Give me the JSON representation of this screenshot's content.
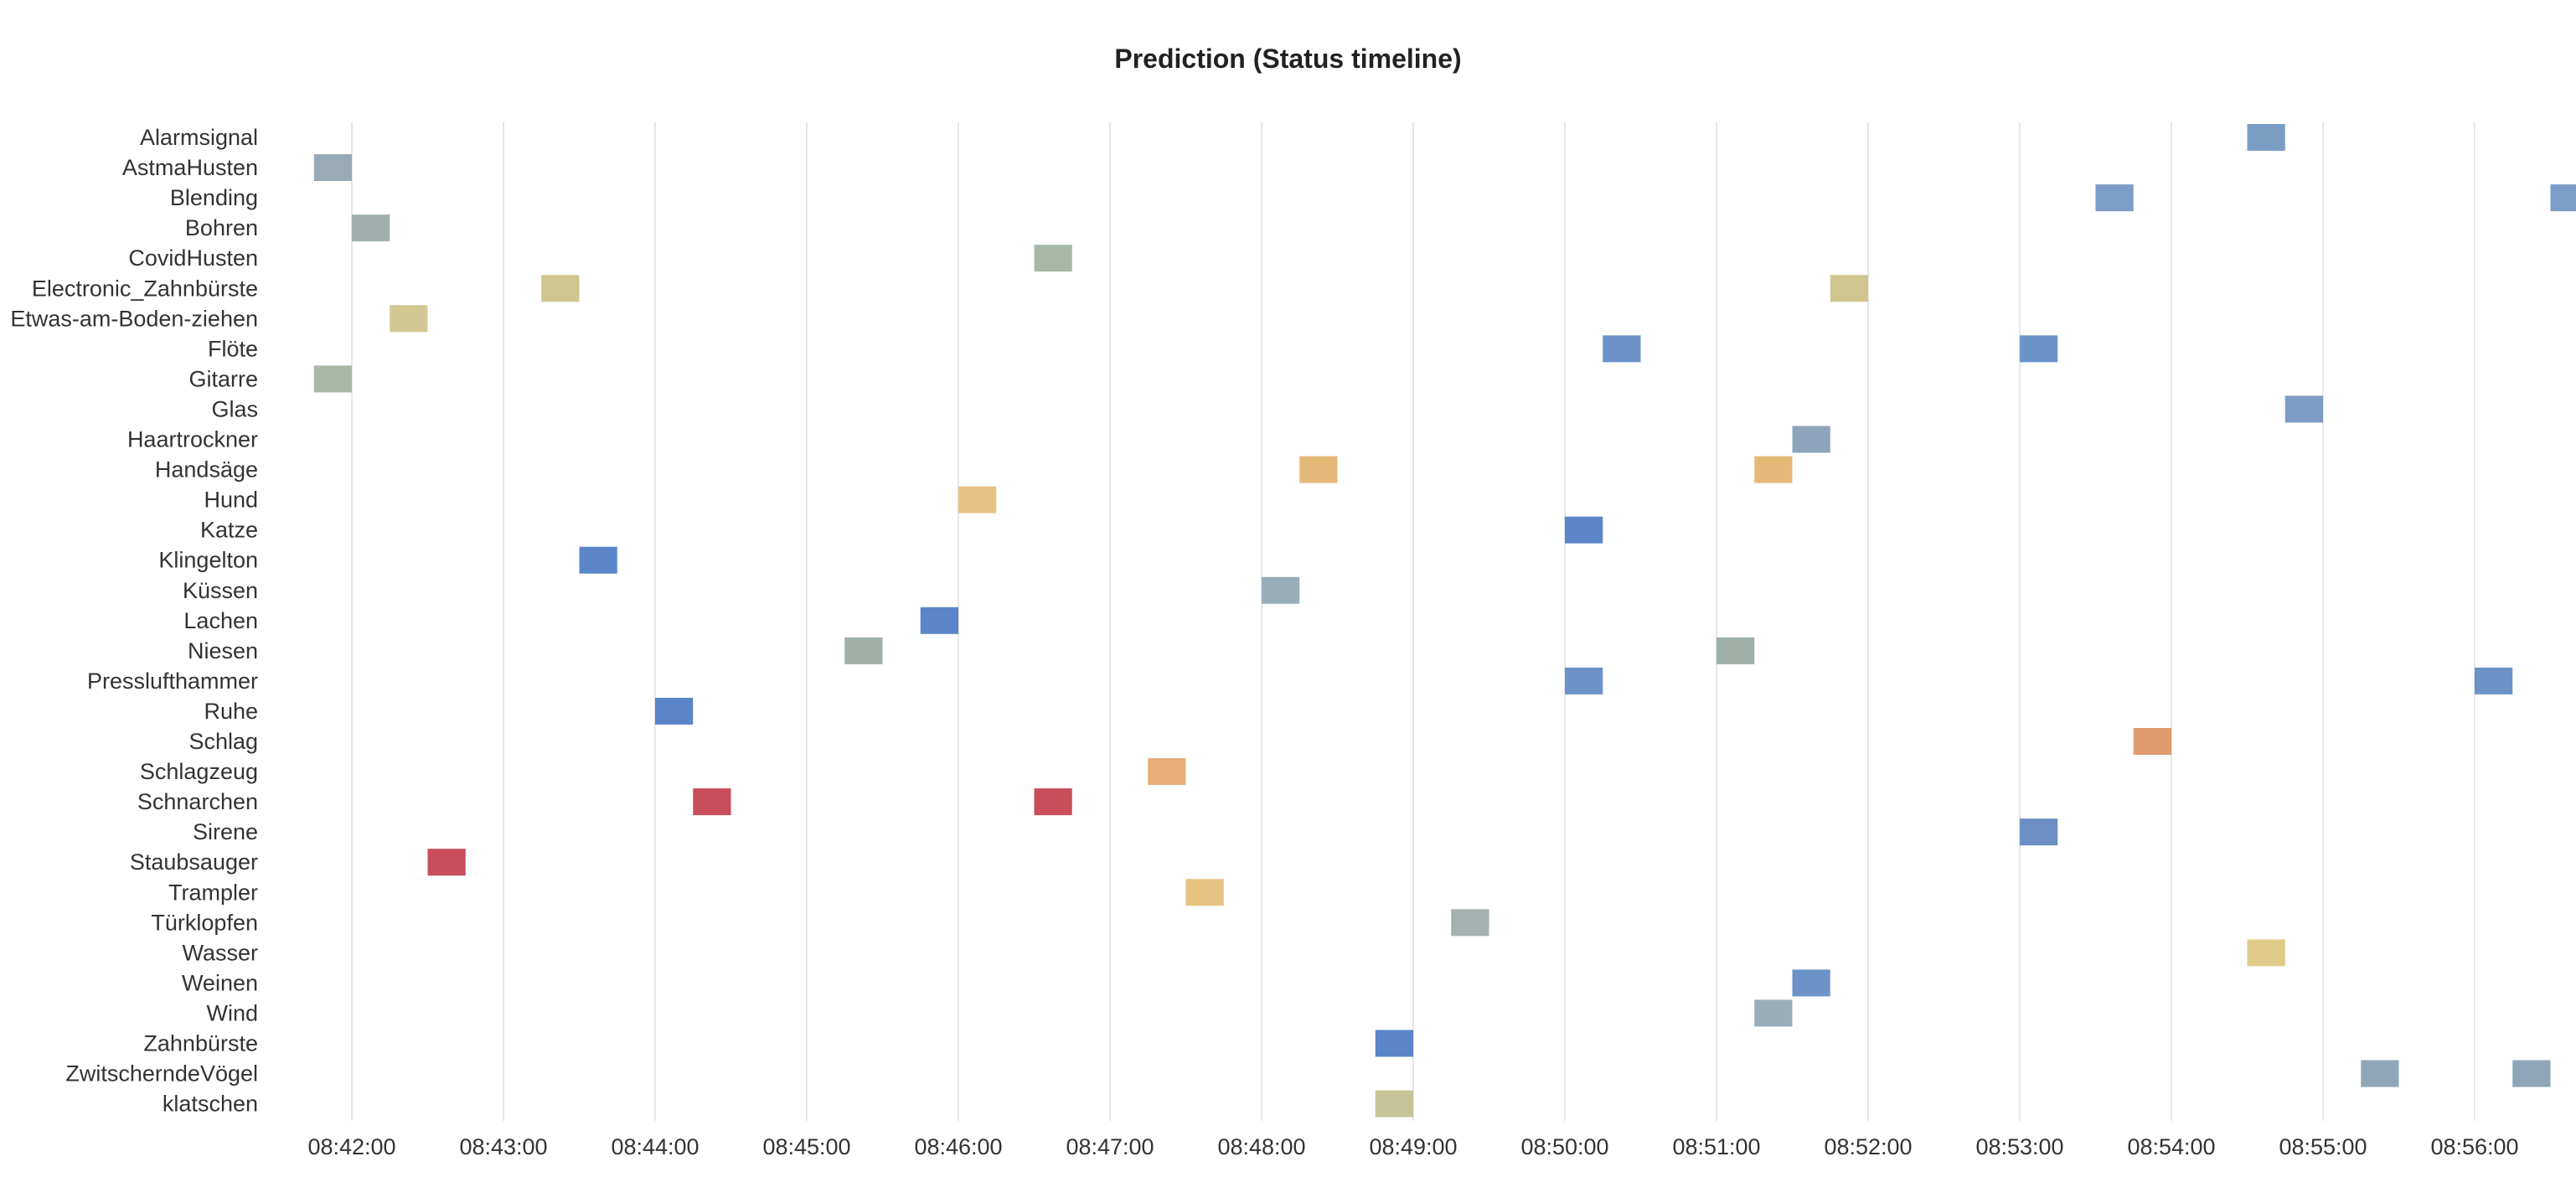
{
  "chart_data": {
    "type": "status-timeline",
    "title": "Prediction (Status timeline)",
    "x_range": [
      "08:41:35",
      "08:56:40"
    ],
    "x_ticks": [
      "08:42:00",
      "08:43:00",
      "08:44:00",
      "08:45:00",
      "08:46:00",
      "08:47:00",
      "08:48:00",
      "08:49:00",
      "08:50:00",
      "08:51:00",
      "08:52:00",
      "08:53:00",
      "08:54:00",
      "08:55:00",
      "08:56:00"
    ],
    "rows": [
      {
        "label": "Alarmsignal",
        "color": "#7b9dc3",
        "events": [
          {
            "start": "08:54:30",
            "end": "08:54:45"
          }
        ]
      },
      {
        "label": "AstmaHusten",
        "color": "#98aab8",
        "events": [
          {
            "start": "08:41:45",
            "end": "08:42:00"
          }
        ]
      },
      {
        "label": "Blending",
        "color": "#7b9dc8",
        "events": [
          {
            "start": "08:53:30",
            "end": "08:53:45"
          },
          {
            "start": "08:56:30",
            "end": "08:56:45"
          }
        ]
      },
      {
        "label": "Bohren",
        "color": "#9fb0ac",
        "events": [
          {
            "start": "08:42:00",
            "end": "08:42:15"
          }
        ]
      },
      {
        "label": "CovidHusten",
        "color": "#a8b8a8",
        "events": [
          {
            "start": "08:46:30",
            "end": "08:46:45"
          }
        ]
      },
      {
        "label": "Electronic_Zahnbürste",
        "color": "#cfc58f",
        "events": [
          {
            "start": "08:43:15",
            "end": "08:43:30"
          },
          {
            "start": "08:51:45",
            "end": "08:52:00"
          }
        ]
      },
      {
        "label": "Etwas-am-Boden-ziehen",
        "color": "#d2c893",
        "events": [
          {
            "start": "08:42:15",
            "end": "08:42:30"
          }
        ]
      },
      {
        "label": "Flöte",
        "color": "#6b93c8",
        "events": [
          {
            "start": "08:50:15",
            "end": "08:50:30"
          },
          {
            "start": "08:53:00",
            "end": "08:53:15"
          }
        ]
      },
      {
        "label": "Gitarre",
        "color": "#a8b8a5",
        "events": [
          {
            "start": "08:41:45",
            "end": "08:42:00"
          }
        ]
      },
      {
        "label": "Glas",
        "color": "#7c9cc5",
        "events": [
          {
            "start": "08:54:45",
            "end": "08:55:00"
          }
        ]
      },
      {
        "label": "Haartrockner",
        "color": "#8ca4bc",
        "events": [
          {
            "start": "08:51:30",
            "end": "08:51:45"
          }
        ]
      },
      {
        "label": "Handsäge",
        "color": "#e6b878",
        "events": [
          {
            "start": "08:48:15",
            "end": "08:48:30"
          },
          {
            "start": "08:51:15",
            "end": "08:51:30"
          }
        ]
      },
      {
        "label": "Hund",
        "color": "#e6c383",
        "events": [
          {
            "start": "08:46:00",
            "end": "08:46:15"
          }
        ]
      },
      {
        "label": "Katze",
        "color": "#5a85c9",
        "events": [
          {
            "start": "08:50:00",
            "end": "08:50:15"
          }
        ]
      },
      {
        "label": "Klingelton",
        "color": "#5a85c9",
        "events": [
          {
            "start": "08:43:30",
            "end": "08:43:45"
          }
        ]
      },
      {
        "label": "Küssen",
        "color": "#98aeb8",
        "events": [
          {
            "start": "08:48:00",
            "end": "08:48:15"
          }
        ]
      },
      {
        "label": "Lachen",
        "color": "#5a85c9",
        "events": [
          {
            "start": "08:45:45",
            "end": "08:46:00"
          }
        ]
      },
      {
        "label": "Niesen",
        "color": "#9eb0a8",
        "events": [
          {
            "start": "08:45:15",
            "end": "08:45:30"
          },
          {
            "start": "08:51:00",
            "end": "08:51:15"
          }
        ]
      },
      {
        "label": "Presslufthammer",
        "color": "#6b93c8",
        "events": [
          {
            "start": "08:50:00",
            "end": "08:50:15"
          },
          {
            "start": "08:56:00",
            "end": "08:56:15"
          }
        ]
      },
      {
        "label": "Ruhe",
        "color": "#5a85c9",
        "events": [
          {
            "start": "08:44:00",
            "end": "08:44:15"
          }
        ]
      },
      {
        "label": "Schlag",
        "color": "#e09a6e",
        "events": [
          {
            "start": "08:53:45",
            "end": "08:54:00"
          }
        ]
      },
      {
        "label": "Schlagzeug",
        "color": "#e8ae78",
        "events": [
          {
            "start": "08:47:15",
            "end": "08:47:30"
          }
        ]
      },
      {
        "label": "Schnarchen",
        "color": "#c74e5a",
        "events": [
          {
            "start": "08:44:15",
            "end": "08:44:30"
          },
          {
            "start": "08:46:30",
            "end": "08:46:45"
          }
        ]
      },
      {
        "label": "Sirene",
        "color": "#6b8fc3",
        "events": [
          {
            "start": "08:53:00",
            "end": "08:53:15"
          }
        ]
      },
      {
        "label": "Staubsauger",
        "color": "#c74e5a",
        "events": [
          {
            "start": "08:42:30",
            "end": "08:42:45"
          }
        ]
      },
      {
        "label": "Trampler",
        "color": "#e6c383",
        "events": [
          {
            "start": "08:47:30",
            "end": "08:47:45"
          }
        ]
      },
      {
        "label": "Türklopfen",
        "color": "#a3b2b0",
        "events": [
          {
            "start": "08:49:15",
            "end": "08:49:30"
          }
        ]
      },
      {
        "label": "Wasser",
        "color": "#e0ca8a",
        "events": [
          {
            "start": "08:54:30",
            "end": "08:54:45"
          }
        ]
      },
      {
        "label": "Weinen",
        "color": "#6b93c8",
        "events": [
          {
            "start": "08:51:30",
            "end": "08:51:45"
          }
        ]
      },
      {
        "label": "Wind",
        "color": "#98aeb8",
        "events": [
          {
            "start": "08:51:15",
            "end": "08:51:30"
          }
        ]
      },
      {
        "label": "Zahnbürste",
        "color": "#5a85c9",
        "events": [
          {
            "start": "08:48:45",
            "end": "08:49:00"
          }
        ]
      },
      {
        "label": "ZwitscherndeVögel",
        "color": "#8ea6b8",
        "events": [
          {
            "start": "08:55:15",
            "end": "08:55:30"
          },
          {
            "start": "08:56:15",
            "end": "08:56:30"
          }
        ]
      },
      {
        "label": "klatschen",
        "color": "#c5c497",
        "events": [
          {
            "start": "08:48:45",
            "end": "08:49:00"
          }
        ]
      }
    ],
    "grid": true,
    "legend": "none"
  }
}
